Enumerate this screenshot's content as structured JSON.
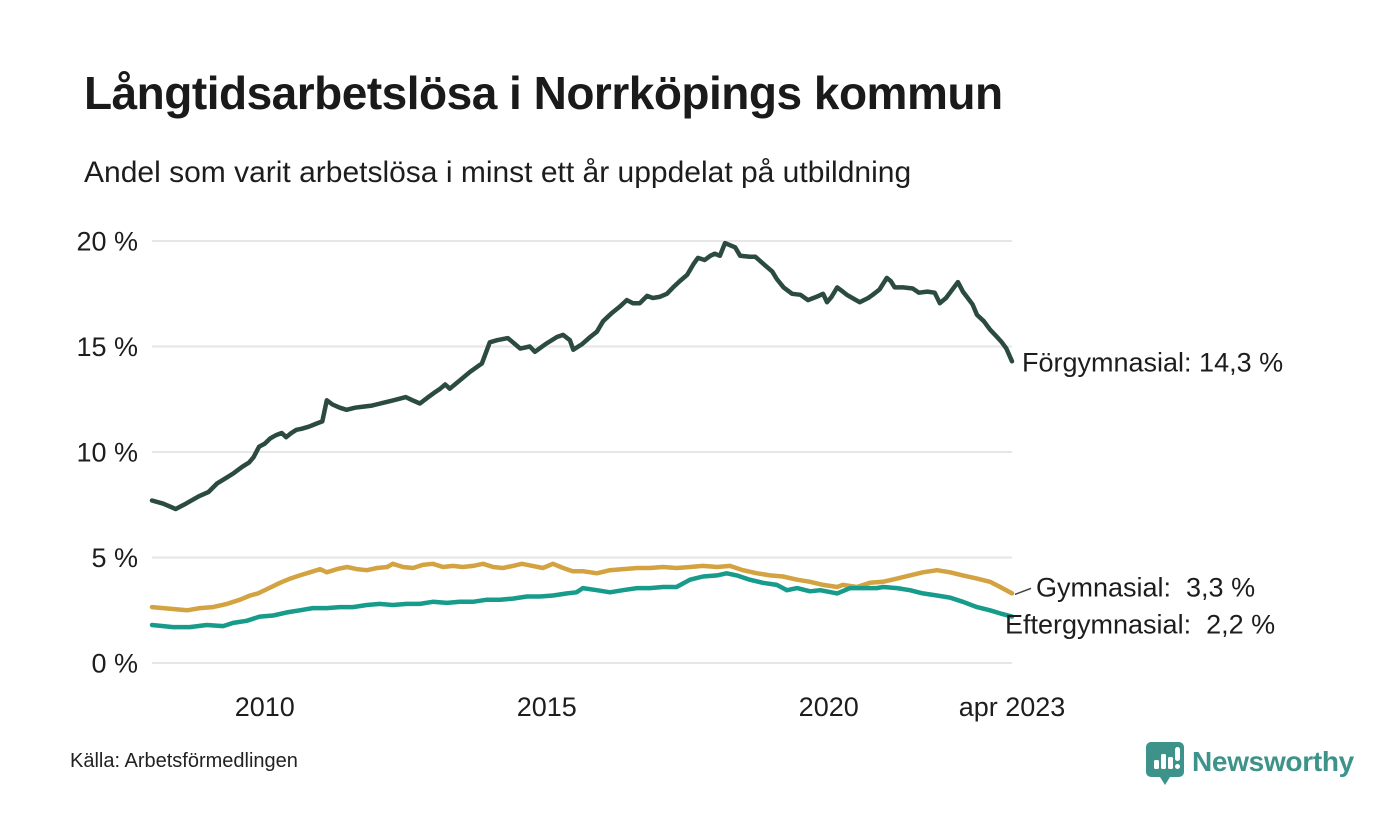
{
  "title": "Långtidsarbetslösa i Norrköpings kommun",
  "subtitle": "Andel som varit arbetslösa i minst ett år uppdelat på utbildning",
  "source": {
    "text": "Källa: Arbetsförmedlingen"
  },
  "branding": {
    "name": "Newsworthy",
    "color": "#3d928a"
  },
  "colors": {
    "background": "#ffffff",
    "text": "#1d1d1d",
    "grid": "#e6e6e6",
    "forgymnasial": "#2c4b40",
    "gymnasial": "#d2a340",
    "eftergymnasial": "#179b8b"
  },
  "chart_data": {
    "type": "line",
    "title": "Långtidsarbetslösa i Norrköpings kommun",
    "subtitle": "Andel som varit arbetslösa i minst ett år uppdelat på utbildning",
    "unit": "%",
    "grid": true,
    "legend_position": "end-of-line-labels",
    "x_axis": {
      "range": [
        2008.0,
        2023.25
      ],
      "ticks": [
        {
          "value": 2010,
          "label": "2010"
        },
        {
          "value": 2015,
          "label": "2015"
        },
        {
          "value": 2020,
          "label": "2020"
        },
        {
          "value": 2023.25,
          "label": "apr 2023"
        }
      ]
    },
    "y_axis": {
      "range": [
        0,
        20
      ],
      "ticks": [
        {
          "value": 0,
          "label": "0 %"
        },
        {
          "value": 5,
          "label": "5 %"
        },
        {
          "value": 10,
          "label": "10 %"
        },
        {
          "value": 15,
          "label": "15 %"
        },
        {
          "value": 20,
          "label": "20 %"
        }
      ]
    },
    "series": [
      {
        "id": "forgymnasial",
        "name": "Förgymnasial",
        "color": "#2c4b40",
        "latest": "14,3 %",
        "end_label": "Förgymnasial: 14,3 %",
        "points": [
          [
            2008.0,
            7.7
          ],
          [
            2008.2,
            7.55
          ],
          [
            2008.42,
            7.3
          ],
          [
            2008.6,
            7.55
          ],
          [
            2008.83,
            7.9
          ],
          [
            2009.0,
            8.1
          ],
          [
            2009.15,
            8.5
          ],
          [
            2009.3,
            8.75
          ],
          [
            2009.45,
            9.0
          ],
          [
            2009.6,
            9.3
          ],
          [
            2009.72,
            9.5
          ],
          [
            2009.8,
            9.75
          ],
          [
            2009.9,
            10.25
          ],
          [
            2010.0,
            10.4
          ],
          [
            2010.1,
            10.65
          ],
          [
            2010.2,
            10.8
          ],
          [
            2010.3,
            10.9
          ],
          [
            2010.38,
            10.7
          ],
          [
            2010.47,
            10.9
          ],
          [
            2010.56,
            11.05
          ],
          [
            2010.65,
            11.1
          ],
          [
            2010.78,
            11.2
          ],
          [
            2010.92,
            11.35
          ],
          [
            2011.02,
            11.45
          ],
          [
            2011.1,
            12.45
          ],
          [
            2011.2,
            12.25
          ],
          [
            2011.33,
            12.1
          ],
          [
            2011.45,
            12.0
          ],
          [
            2011.6,
            12.1
          ],
          [
            2011.75,
            12.15
          ],
          [
            2011.9,
            12.2
          ],
          [
            2012.05,
            12.3
          ],
          [
            2012.2,
            12.4
          ],
          [
            2012.35,
            12.5
          ],
          [
            2012.5,
            12.6
          ],
          [
            2012.62,
            12.45
          ],
          [
            2012.75,
            12.3
          ],
          [
            2012.9,
            12.6
          ],
          [
            2013.0,
            12.8
          ],
          [
            2013.11,
            13.0
          ],
          [
            2013.2,
            13.2
          ],
          [
            2013.28,
            13.0
          ],
          [
            2013.46,
            13.4
          ],
          [
            2013.64,
            13.8
          ],
          [
            2013.85,
            14.2
          ],
          [
            2013.99,
            15.2
          ],
          [
            2014.12,
            15.3
          ],
          [
            2014.31,
            15.4
          ],
          [
            2014.4,
            15.2
          ],
          [
            2014.53,
            14.9
          ],
          [
            2014.7,
            15.0
          ],
          [
            2014.79,
            14.75
          ],
          [
            2014.97,
            15.1
          ],
          [
            2015.18,
            15.45
          ],
          [
            2015.29,
            15.55
          ],
          [
            2015.41,
            15.3
          ],
          [
            2015.47,
            14.85
          ],
          [
            2015.62,
            15.1
          ],
          [
            2015.77,
            15.45
          ],
          [
            2015.89,
            15.7
          ],
          [
            2016.0,
            16.2
          ],
          [
            2016.16,
            16.6
          ],
          [
            2016.3,
            16.9
          ],
          [
            2016.42,
            17.2
          ],
          [
            2016.53,
            17.05
          ],
          [
            2016.65,
            17.05
          ],
          [
            2016.78,
            17.4
          ],
          [
            2016.88,
            17.3
          ],
          [
            2017.0,
            17.35
          ],
          [
            2017.13,
            17.5
          ],
          [
            2017.24,
            17.8
          ],
          [
            2017.36,
            18.1
          ],
          [
            2017.49,
            18.4
          ],
          [
            2017.6,
            18.9
          ],
          [
            2017.68,
            19.2
          ],
          [
            2017.8,
            19.1
          ],
          [
            2017.9,
            19.3
          ],
          [
            2017.98,
            19.4
          ],
          [
            2018.07,
            19.3
          ],
          [
            2018.16,
            19.9
          ],
          [
            2018.25,
            19.8
          ],
          [
            2018.34,
            19.7
          ],
          [
            2018.43,
            19.3
          ],
          [
            2018.6,
            19.25
          ],
          [
            2018.7,
            19.25
          ],
          [
            2018.87,
            18.85
          ],
          [
            2019.0,
            18.55
          ],
          [
            2019.08,
            18.2
          ],
          [
            2019.2,
            17.8
          ],
          [
            2019.35,
            17.5
          ],
          [
            2019.5,
            17.45
          ],
          [
            2019.63,
            17.2
          ],
          [
            2019.78,
            17.35
          ],
          [
            2019.9,
            17.5
          ],
          [
            2019.97,
            17.1
          ],
          [
            2020.05,
            17.35
          ],
          [
            2020.15,
            17.8
          ],
          [
            2020.25,
            17.6
          ],
          [
            2020.32,
            17.45
          ],
          [
            2020.45,
            17.25
          ],
          [
            2020.55,
            17.1
          ],
          [
            2020.7,
            17.3
          ],
          [
            2020.78,
            17.45
          ],
          [
            2020.9,
            17.7
          ],
          [
            2021.03,
            18.25
          ],
          [
            2021.1,
            18.1
          ],
          [
            2021.17,
            17.8
          ],
          [
            2021.32,
            17.8
          ],
          [
            2021.49,
            17.75
          ],
          [
            2021.6,
            17.55
          ],
          [
            2021.75,
            17.6
          ],
          [
            2021.88,
            17.55
          ],
          [
            2021.97,
            17.05
          ],
          [
            2022.08,
            17.3
          ],
          [
            2022.15,
            17.55
          ],
          [
            2022.29,
            18.05
          ],
          [
            2022.38,
            17.6
          ],
          [
            2022.45,
            17.35
          ],
          [
            2022.55,
            17.0
          ],
          [
            2022.63,
            16.5
          ],
          [
            2022.75,
            16.2
          ],
          [
            2022.86,
            15.8
          ],
          [
            2022.95,
            15.55
          ],
          [
            2023.07,
            15.2
          ],
          [
            2023.15,
            14.9
          ],
          [
            2023.25,
            14.3
          ]
        ]
      },
      {
        "id": "gymnasial",
        "name": "Gymnasial",
        "color": "#d2a340",
        "latest": "3,3 %",
        "end_label": "Gymnasial:  3,3 %",
        "points": [
          [
            2008.0,
            2.65
          ],
          [
            2008.2,
            2.6
          ],
          [
            2008.42,
            2.55
          ],
          [
            2008.62,
            2.5
          ],
          [
            2008.85,
            2.6
          ],
          [
            2009.08,
            2.65
          ],
          [
            2009.33,
            2.8
          ],
          [
            2009.56,
            3.0
          ],
          [
            2009.74,
            3.2
          ],
          [
            2009.88,
            3.3
          ],
          [
            2010.04,
            3.5
          ],
          [
            2010.27,
            3.8
          ],
          [
            2010.45,
            4.0
          ],
          [
            2010.62,
            4.15
          ],
          [
            2010.8,
            4.3
          ],
          [
            2010.98,
            4.45
          ],
          [
            2011.1,
            4.3
          ],
          [
            2011.28,
            4.45
          ],
          [
            2011.46,
            4.55
          ],
          [
            2011.63,
            4.45
          ],
          [
            2011.81,
            4.4
          ],
          [
            2011.99,
            4.5
          ],
          [
            2012.17,
            4.55
          ],
          [
            2012.27,
            4.7
          ],
          [
            2012.45,
            4.55
          ],
          [
            2012.63,
            4.5
          ],
          [
            2012.8,
            4.65
          ],
          [
            2012.98,
            4.7
          ],
          [
            2013.16,
            4.55
          ],
          [
            2013.34,
            4.6
          ],
          [
            2013.51,
            4.55
          ],
          [
            2013.69,
            4.6
          ],
          [
            2013.87,
            4.7
          ],
          [
            2014.05,
            4.55
          ],
          [
            2014.22,
            4.5
          ],
          [
            2014.4,
            4.6
          ],
          [
            2014.56,
            4.7
          ],
          [
            2014.75,
            4.6
          ],
          [
            2014.93,
            4.5
          ],
          [
            2015.11,
            4.7
          ],
          [
            2015.29,
            4.5
          ],
          [
            2015.46,
            4.35
          ],
          [
            2015.64,
            4.35
          ],
          [
            2015.89,
            4.25
          ],
          [
            2016.12,
            4.4
          ],
          [
            2016.35,
            4.45
          ],
          [
            2016.6,
            4.5
          ],
          [
            2016.83,
            4.5
          ],
          [
            2017.06,
            4.55
          ],
          [
            2017.3,
            4.5
          ],
          [
            2017.54,
            4.55
          ],
          [
            2017.77,
            4.6
          ],
          [
            2018.02,
            4.55
          ],
          [
            2018.25,
            4.6
          ],
          [
            2018.48,
            4.4
          ],
          [
            2018.73,
            4.25
          ],
          [
            2018.96,
            4.15
          ],
          [
            2019.19,
            4.1
          ],
          [
            2019.44,
            3.95
          ],
          [
            2019.67,
            3.85
          ],
          [
            2019.9,
            3.7
          ],
          [
            2020.15,
            3.6
          ],
          [
            2020.25,
            3.7
          ],
          [
            2020.5,
            3.6
          ],
          [
            2020.73,
            3.8
          ],
          [
            2020.96,
            3.85
          ],
          [
            2021.21,
            4.0
          ],
          [
            2021.44,
            4.15
          ],
          [
            2021.67,
            4.3
          ],
          [
            2021.92,
            4.4
          ],
          [
            2022.15,
            4.3
          ],
          [
            2022.38,
            4.15
          ],
          [
            2022.63,
            4.0
          ],
          [
            2022.86,
            3.85
          ],
          [
            2023.04,
            3.6
          ],
          [
            2023.25,
            3.3
          ]
        ]
      },
      {
        "id": "eftergymnasial",
        "name": "Eftergymnasial",
        "color": "#179b8b",
        "latest": "2,2 %",
        "end_label": "Eftergymnasial:  2,2 %",
        "points": [
          [
            2008.0,
            1.8
          ],
          [
            2008.2,
            1.75
          ],
          [
            2008.37,
            1.7
          ],
          [
            2008.67,
            1.7
          ],
          [
            2008.97,
            1.8
          ],
          [
            2009.26,
            1.75
          ],
          [
            2009.44,
            1.9
          ],
          [
            2009.68,
            2.0
          ],
          [
            2009.91,
            2.2
          ],
          [
            2010.15,
            2.25
          ],
          [
            2010.39,
            2.4
          ],
          [
            2010.62,
            2.5
          ],
          [
            2010.85,
            2.6
          ],
          [
            2011.1,
            2.6
          ],
          [
            2011.33,
            2.65
          ],
          [
            2011.56,
            2.65
          ],
          [
            2011.81,
            2.75
          ],
          [
            2012.04,
            2.8
          ],
          [
            2012.27,
            2.75
          ],
          [
            2012.52,
            2.8
          ],
          [
            2012.75,
            2.8
          ],
          [
            2012.98,
            2.9
          ],
          [
            2013.23,
            2.85
          ],
          [
            2013.46,
            2.9
          ],
          [
            2013.69,
            2.9
          ],
          [
            2013.94,
            3.0
          ],
          [
            2014.17,
            3.0
          ],
          [
            2014.4,
            3.05
          ],
          [
            2014.65,
            3.15
          ],
          [
            2014.88,
            3.15
          ],
          [
            2015.11,
            3.2
          ],
          [
            2015.36,
            3.3
          ],
          [
            2015.53,
            3.35
          ],
          [
            2015.64,
            3.55
          ],
          [
            2015.89,
            3.45
          ],
          [
            2016.12,
            3.35
          ],
          [
            2016.35,
            3.45
          ],
          [
            2016.6,
            3.55
          ],
          [
            2016.83,
            3.55
          ],
          [
            2017.06,
            3.6
          ],
          [
            2017.3,
            3.6
          ],
          [
            2017.54,
            3.95
          ],
          [
            2017.77,
            4.1
          ],
          [
            2018.02,
            4.15
          ],
          [
            2018.19,
            4.25
          ],
          [
            2018.37,
            4.15
          ],
          [
            2018.6,
            3.95
          ],
          [
            2018.83,
            3.8
          ],
          [
            2019.08,
            3.7
          ],
          [
            2019.26,
            3.45
          ],
          [
            2019.44,
            3.55
          ],
          [
            2019.67,
            3.4
          ],
          [
            2019.85,
            3.45
          ],
          [
            2020.15,
            3.3
          ],
          [
            2020.38,
            3.55
          ],
          [
            2020.61,
            3.55
          ],
          [
            2020.85,
            3.55
          ],
          [
            2020.96,
            3.6
          ],
          [
            2021.21,
            3.55
          ],
          [
            2021.44,
            3.45
          ],
          [
            2021.67,
            3.3
          ],
          [
            2021.92,
            3.2
          ],
          [
            2022.15,
            3.1
          ],
          [
            2022.38,
            2.9
          ],
          [
            2022.63,
            2.65
          ],
          [
            2022.86,
            2.5
          ],
          [
            2023.04,
            2.35
          ],
          [
            2023.25,
            2.2
          ]
        ]
      }
    ]
  }
}
